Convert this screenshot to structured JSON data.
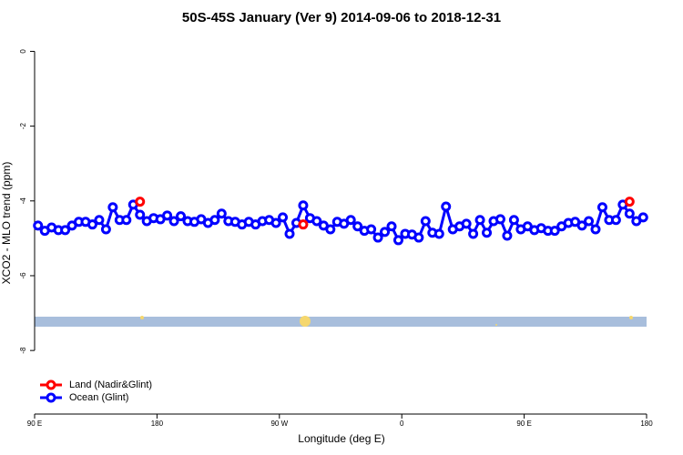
{
  "chart_data": {
    "type": "line",
    "title": "50S-45S January (Ver 9)   2014-09-06 to 2018-12-31",
    "x_label": "Longitude (deg E)",
    "y_label": "XCO2 - MLO trend (ppm)",
    "xlim": [
      90,
      540
    ],
    "xticks": [
      {
        "value": 90,
        "label": "90 E"
      },
      180,
      {
        "value": 270,
        "label": "90 W"
      },
      {
        "value": 360,
        "label": "0"
      },
      {
        "value": 450,
        "label": "90 E"
      },
      {
        "value": 540,
        "label": "180"
      }
    ],
    "ylim": [
      -9.7,
      0.4
    ],
    "yticks": [
      0,
      -2,
      -4,
      -6,
      -8
    ],
    "legend": "bottom-left",
    "x": [
      92.5,
      97.5,
      102.5,
      107.5,
      112.5,
      117.5,
      122.5,
      127.5,
      132.5,
      137.5,
      142.5,
      147.5,
      152.5,
      157.5,
      162.5,
      167.5,
      172.5,
      177.5,
      182.5,
      187.5,
      192.5,
      197.5,
      202.5,
      207.5,
      212.5,
      217.5,
      222.5,
      227.5,
      232.5,
      237.5,
      242.5,
      247.5,
      252.5,
      257.5,
      262.5,
      267.5,
      272.5,
      277.5,
      282.5,
      287.5,
      292.5,
      297.5,
      302.5,
      307.5,
      312.5,
      317.5,
      322.5,
      327.5,
      332.5,
      337.5,
      342.5,
      347.5,
      352.5,
      357.5,
      362.5,
      367.5,
      372.5,
      377.5,
      382.5,
      387.5,
      392.5,
      397.5,
      402.5,
      407.5,
      412.5,
      417.5,
      422.5,
      427.5,
      432.5,
      437.5,
      442.5,
      447.5,
      452.5,
      457.5,
      462.5,
      467.5,
      472.5,
      477.5,
      482.5,
      487.5,
      492.5,
      497.5,
      502.5,
      507.5,
      512.5,
      517.5,
      522.5,
      527.5,
      532.5,
      537.5
    ],
    "series": [
      {
        "name": "Land (Nadir&Glint)",
        "color": "#ff0000",
        "values": [
          null,
          null,
          null,
          null,
          null,
          null,
          null,
          null,
          null,
          null,
          null,
          null,
          null,
          null,
          null,
          -4.02,
          null,
          null,
          null,
          null,
          null,
          null,
          null,
          null,
          null,
          null,
          null,
          null,
          null,
          null,
          null,
          null,
          null,
          null,
          null,
          null,
          null,
          null,
          null,
          -4.63,
          null,
          null,
          null,
          null,
          null,
          null,
          null,
          null,
          null,
          null,
          null,
          null,
          null,
          null,
          null,
          null,
          null,
          null,
          null,
          null,
          null,
          null,
          null,
          null,
          null,
          null,
          null,
          null,
          null,
          null,
          null,
          null,
          null,
          null,
          null,
          null,
          null,
          null,
          null,
          null,
          null,
          null,
          null,
          null,
          null,
          null,
          null,
          -4.02,
          null,
          null
        ]
      },
      {
        "name": "Ocean (Glint)",
        "color": "#0000ff",
        "values": [
          -4.66,
          -4.8,
          -4.71,
          -4.78,
          -4.78,
          -4.66,
          -4.56,
          -4.56,
          -4.63,
          -4.51,
          -4.76,
          -4.17,
          -4.51,
          -4.51,
          -4.1,
          -4.37,
          -4.54,
          -4.46,
          -4.49,
          -4.39,
          -4.54,
          -4.41,
          -4.54,
          -4.56,
          -4.49,
          -4.59,
          -4.51,
          -4.34,
          -4.54,
          -4.56,
          -4.63,
          -4.56,
          -4.63,
          -4.54,
          -4.51,
          -4.59,
          -4.44,
          -4.88,
          -4.59,
          -4.12,
          -4.46,
          -4.54,
          -4.66,
          -4.76,
          -4.56,
          -4.61,
          -4.51,
          -4.68,
          -4.8,
          -4.76,
          -4.98,
          -4.83,
          -4.68,
          -5.05,
          -4.88,
          -4.9,
          -4.98,
          -4.54,
          -4.85,
          -4.88,
          -4.15,
          -4.76,
          -4.68,
          -4.61,
          -4.88,
          -4.51,
          -4.85,
          -4.54,
          -4.49,
          -4.93,
          -4.51,
          -4.76,
          -4.68,
          -4.78,
          -4.73,
          -4.8,
          -4.8,
          -4.68,
          -4.59,
          -4.56,
          -4.66,
          -4.54,
          -4.76,
          -4.17,
          -4.51,
          -4.51,
          -4.1,
          -4.34,
          -4.54,
          -4.44
        ]
      }
    ]
  }
}
